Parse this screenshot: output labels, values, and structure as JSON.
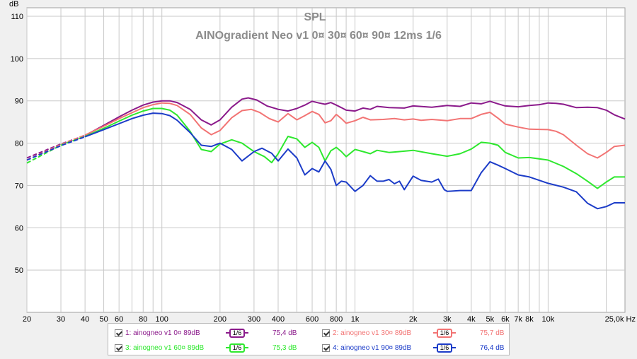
{
  "window": {
    "unit_label": "dB"
  },
  "chart_data": {
    "type": "line",
    "title": "SPL",
    "subtitle": "AINOgradient Neo v1 0¤ 30¤ 60¤ 90¤ 12ms 1/6",
    "ylabel": "dB",
    "xlabel": "",
    "x_scale": "log",
    "xlim": [
      20,
      25000
    ],
    "ylim": [
      40,
      112
    ],
    "grid": true,
    "y_ticks": [
      50,
      60,
      70,
      80,
      90,
      100,
      110
    ],
    "x_ticks": [
      {
        "v": 20,
        "label": "20"
      },
      {
        "v": 30,
        "label": "30"
      },
      {
        "v": 40,
        "label": "40"
      },
      {
        "v": 50,
        "label": "50"
      },
      {
        "v": 60,
        "label": "60"
      },
      {
        "v": 80,
        "label": "80"
      },
      {
        "v": 100,
        "label": "100"
      },
      {
        "v": 200,
        "label": "200"
      },
      {
        "v": 300,
        "label": "300"
      },
      {
        "v": 400,
        "label": "400"
      },
      {
        "v": 600,
        "label": "600"
      },
      {
        "v": 800,
        "label": "800"
      },
      {
        "v": 1000,
        "label": "1k"
      },
      {
        "v": 2000,
        "label": "2k"
      },
      {
        "v": 3000,
        "label": "3k"
      },
      {
        "v": 4000,
        "label": "4k"
      },
      {
        "v": 5000,
        "label": "5k"
      },
      {
        "v": 6000,
        "label": "6k"
      },
      {
        "v": 7000,
        "label": "7k"
      },
      {
        "v": 8000,
        "label": "8k"
      },
      {
        "v": 10000,
        "label": "10k"
      },
      {
        "v": 25000,
        "label": "25,0k Hz"
      }
    ],
    "minor_x": [
      20,
      30,
      40,
      50,
      60,
      70,
      80,
      90,
      100,
      200,
      300,
      400,
      500,
      600,
      700,
      800,
      900,
      1000,
      2000,
      3000,
      4000,
      5000,
      6000,
      7000,
      8000,
      9000,
      10000,
      20000
    ],
    "series": [
      {
        "name": "1: ainogneo v1 0¤ 89dB",
        "color": "#8b1a8b",
        "dash_below": 40,
        "points": [
          [
            20,
            76.5
          ],
          [
            30,
            79.8
          ],
          [
            40,
            81.8
          ],
          [
            50,
            84.2
          ],
          [
            60,
            86.2
          ],
          [
            70,
            87.8
          ],
          [
            80,
            89.0
          ],
          [
            90,
            89.7
          ],
          [
            100,
            90.0
          ],
          [
            110,
            90.0
          ],
          [
            120,
            89.6
          ],
          [
            140,
            88.0
          ],
          [
            160,
            85.5
          ],
          [
            180,
            84.3
          ],
          [
            200,
            85.5
          ],
          [
            230,
            88.5
          ],
          [
            260,
            90.4
          ],
          [
            280,
            90.7
          ],
          [
            310,
            90.2
          ],
          [
            350,
            88.8
          ],
          [
            400,
            88.0
          ],
          [
            450,
            87.6
          ],
          [
            500,
            88.2
          ],
          [
            550,
            89.0
          ],
          [
            600,
            89.9
          ],
          [
            650,
            89.5
          ],
          [
            700,
            89.2
          ],
          [
            750,
            89.6
          ],
          [
            800,
            89.0
          ],
          [
            850,
            88.4
          ],
          [
            900,
            87.8
          ],
          [
            1000,
            87.6
          ],
          [
            1100,
            88.3
          ],
          [
            1200,
            88.0
          ],
          [
            1300,
            88.7
          ],
          [
            1500,
            88.4
          ],
          [
            1800,
            88.3
          ],
          [
            2000,
            88.8
          ],
          [
            2500,
            88.5
          ],
          [
            3000,
            88.9
          ],
          [
            3500,
            88.7
          ],
          [
            4000,
            89.5
          ],
          [
            4500,
            89.3
          ],
          [
            5000,
            89.9
          ],
          [
            5500,
            89.3
          ],
          [
            6000,
            88.8
          ],
          [
            7000,
            88.6
          ],
          [
            8000,
            88.9
          ],
          [
            9000,
            89.1
          ],
          [
            10000,
            89.5
          ],
          [
            11000,
            89.4
          ],
          [
            12000,
            89.2
          ],
          [
            14000,
            88.4
          ],
          [
            16000,
            88.5
          ],
          [
            18000,
            88.4
          ],
          [
            20000,
            87.8
          ],
          [
            22000,
            86.7
          ],
          [
            25000,
            85.7
          ]
        ]
      },
      {
        "name": "2: ainogneo v1 30¤ 89dB",
        "color": "#f27474",
        "dash_below": 40,
        "points": [
          [
            20,
            76.0
          ],
          [
            30,
            79.7
          ],
          [
            40,
            81.9
          ],
          [
            50,
            84.0
          ],
          [
            60,
            85.8
          ],
          [
            70,
            87.2
          ],
          [
            80,
            88.4
          ],
          [
            90,
            89.1
          ],
          [
            100,
            89.5
          ],
          [
            110,
            89.4
          ],
          [
            120,
            88.9
          ],
          [
            140,
            86.8
          ],
          [
            160,
            83.6
          ],
          [
            180,
            82.0
          ],
          [
            200,
            83.0
          ],
          [
            230,
            86.0
          ],
          [
            260,
            87.7
          ],
          [
            290,
            88.0
          ],
          [
            320,
            87.3
          ],
          [
            360,
            85.8
          ],
          [
            400,
            85.0
          ],
          [
            450,
            87.0
          ],
          [
            500,
            85.5
          ],
          [
            550,
            86.5
          ],
          [
            600,
            87.5
          ],
          [
            650,
            86.8
          ],
          [
            700,
            84.8
          ],
          [
            750,
            85.3
          ],
          [
            800,
            86.8
          ],
          [
            850,
            85.8
          ],
          [
            900,
            84.7
          ],
          [
            1000,
            85.3
          ],
          [
            1100,
            86.1
          ],
          [
            1200,
            85.5
          ],
          [
            1400,
            85.6
          ],
          [
            1600,
            85.8
          ],
          [
            1800,
            85.5
          ],
          [
            2000,
            85.7
          ],
          [
            2200,
            85.4
          ],
          [
            2500,
            85.6
          ],
          [
            3000,
            85.3
          ],
          [
            3500,
            85.8
          ],
          [
            4000,
            85.8
          ],
          [
            4500,
            86.8
          ],
          [
            5000,
            87.3
          ],
          [
            5500,
            85.9
          ],
          [
            6000,
            84.5
          ],
          [
            7000,
            83.8
          ],
          [
            8000,
            83.3
          ],
          [
            10000,
            83.2
          ],
          [
            11000,
            82.8
          ],
          [
            12000,
            82.0
          ],
          [
            14000,
            79.5
          ],
          [
            16000,
            77.5
          ],
          [
            18000,
            76.5
          ],
          [
            20000,
            77.8
          ],
          [
            22000,
            79.2
          ],
          [
            25000,
            79.5
          ]
        ]
      },
      {
        "name": "3: ainogneo v1 60¤ 89dB",
        "color": "#2ee82e",
        "dash_below": 40,
        "points": [
          [
            20,
            75.3
          ],
          [
            30,
            79.5
          ],
          [
            40,
            81.6
          ],
          [
            50,
            83.5
          ],
          [
            60,
            85.2
          ],
          [
            70,
            86.6
          ],
          [
            80,
            87.6
          ],
          [
            90,
            88.2
          ],
          [
            100,
            88.2
          ],
          [
            110,
            87.8
          ],
          [
            120,
            86.6
          ],
          [
            140,
            82.8
          ],
          [
            160,
            78.5
          ],
          [
            180,
            78.0
          ],
          [
            200,
            79.8
          ],
          [
            230,
            80.8
          ],
          [
            260,
            80.0
          ],
          [
            300,
            78.0
          ],
          [
            340,
            76.8
          ],
          [
            370,
            75.4
          ],
          [
            400,
            77.5
          ],
          [
            450,
            81.6
          ],
          [
            500,
            81.0
          ],
          [
            550,
            79.0
          ],
          [
            600,
            80.2
          ],
          [
            650,
            79.0
          ],
          [
            700,
            75.8
          ],
          [
            750,
            78.2
          ],
          [
            800,
            79.0
          ],
          [
            850,
            78.0
          ],
          [
            900,
            76.8
          ],
          [
            1000,
            78.5
          ],
          [
            1100,
            78.0
          ],
          [
            1200,
            77.5
          ],
          [
            1300,
            78.3
          ],
          [
            1500,
            77.8
          ],
          [
            1700,
            78.0
          ],
          [
            2000,
            78.3
          ],
          [
            2500,
            77.5
          ],
          [
            3000,
            76.9
          ],
          [
            3500,
            77.5
          ],
          [
            4000,
            78.6
          ],
          [
            4500,
            80.2
          ],
          [
            5000,
            80.0
          ],
          [
            5500,
            79.5
          ],
          [
            6000,
            77.8
          ],
          [
            7000,
            76.5
          ],
          [
            8000,
            76.6
          ],
          [
            10000,
            76.0
          ],
          [
            12000,
            74.5
          ],
          [
            14000,
            72.8
          ],
          [
            16000,
            71.0
          ],
          [
            18000,
            69.3
          ],
          [
            20000,
            70.8
          ],
          [
            22000,
            72.0
          ],
          [
            25000,
            72.0
          ]
        ]
      },
      {
        "name": "4: ainogneo v1 90¤ 89dB",
        "color": "#1c3cc8",
        "dash_below": 40,
        "points": [
          [
            20,
            76.0
          ],
          [
            30,
            79.4
          ],
          [
            40,
            81.5
          ],
          [
            50,
            83.2
          ],
          [
            60,
            84.6
          ],
          [
            70,
            85.8
          ],
          [
            80,
            86.6
          ],
          [
            90,
            87.1
          ],
          [
            100,
            87.0
          ],
          [
            110,
            86.5
          ],
          [
            120,
            85.4
          ],
          [
            140,
            82.5
          ],
          [
            160,
            79.5
          ],
          [
            180,
            79.2
          ],
          [
            200,
            80.0
          ],
          [
            230,
            78.5
          ],
          [
            260,
            75.8
          ],
          [
            300,
            78.0
          ],
          [
            330,
            78.8
          ],
          [
            370,
            77.6
          ],
          [
            400,
            75.8
          ],
          [
            450,
            78.6
          ],
          [
            500,
            76.5
          ],
          [
            550,
            72.5
          ],
          [
            600,
            74.0
          ],
          [
            650,
            73.2
          ],
          [
            700,
            75.8
          ],
          [
            750,
            73.8
          ],
          [
            800,
            70.0
          ],
          [
            850,
            71.0
          ],
          [
            900,
            70.8
          ],
          [
            1000,
            68.6
          ],
          [
            1100,
            70.0
          ],
          [
            1200,
            72.3
          ],
          [
            1300,
            71.0
          ],
          [
            1400,
            71.0
          ],
          [
            1500,
            71.4
          ],
          [
            1600,
            70.4
          ],
          [
            1700,
            71.0
          ],
          [
            1800,
            69.0
          ],
          [
            2000,
            72.2
          ],
          [
            2200,
            71.2
          ],
          [
            2500,
            70.8
          ],
          [
            2700,
            71.5
          ],
          [
            2900,
            69.0
          ],
          [
            3000,
            68.6
          ],
          [
            3500,
            68.8
          ],
          [
            4000,
            68.8
          ],
          [
            4500,
            73.0
          ],
          [
            5000,
            75.6
          ],
          [
            5500,
            74.8
          ],
          [
            6000,
            74.0
          ],
          [
            7000,
            72.5
          ],
          [
            8000,
            72.0
          ],
          [
            10000,
            70.5
          ],
          [
            12000,
            69.6
          ],
          [
            14000,
            68.5
          ],
          [
            16000,
            65.8
          ],
          [
            18000,
            64.5
          ],
          [
            20000,
            65.0
          ],
          [
            22000,
            65.9
          ],
          [
            25000,
            65.9
          ]
        ]
      }
    ]
  },
  "legend": {
    "items": [
      {
        "name": "1: ainogneo v1 0¤ 89dB",
        "smoothing": "1/6",
        "offset": "75,4 dB",
        "color": "#8b1a8b",
        "checked": true
      },
      {
        "name": "2: ainogneo v1 30¤ 89dB",
        "smoothing": "1/6",
        "offset": "75,7 dB",
        "color": "#f27474",
        "checked": true
      },
      {
        "name": "3: ainogneo v1 60¤ 89dB",
        "smoothing": "1/6",
        "offset": "75,3 dB",
        "color": "#2ee82e",
        "checked": true
      },
      {
        "name": "4: ainogneo v1 90¤ 89dB",
        "smoothing": "1/6",
        "offset": "76,4 dB",
        "color": "#1c3cc8",
        "checked": true
      }
    ]
  }
}
